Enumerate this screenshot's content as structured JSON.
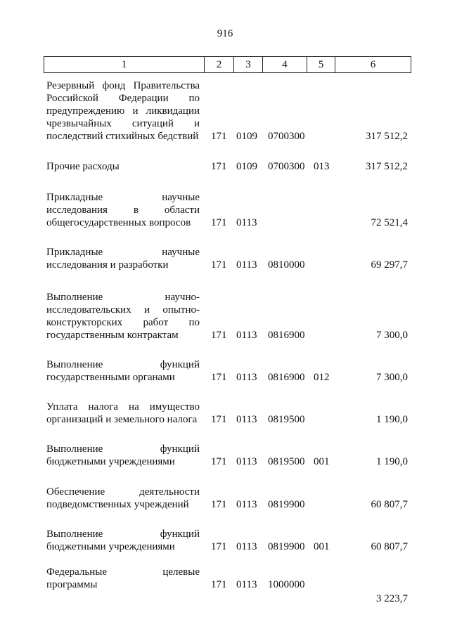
{
  "page_number": "916",
  "header": [
    "1",
    "2",
    "3",
    "4",
    "5",
    "6"
  ],
  "rows": [
    {
      "lines": [
        "Резервный фонд Правительства",
        "Российской Федерации по",
        "предупреждению и ликвидации",
        "чрезвычайных ситуаций и",
        "последствий стихийных бедствий"
      ],
      "c2": "171",
      "c3": "0109",
      "c4": "0700300",
      "c5": "",
      "c6": "317 512,2"
    },
    {
      "lines": [
        "Прочие расходы"
      ],
      "c2": "171",
      "c3": "0109",
      "c4": "0700300",
      "c5": "013",
      "c6": "317 512,2"
    },
    {
      "lines": [
        "Прикладные научные",
        "исследования в области",
        "общегосударственных вопросов"
      ],
      "c2": "171",
      "c3": "0113",
      "c4": "",
      "c5": "",
      "c6": "72 521,4"
    },
    {
      "lines": [
        "Прикладные научные",
        "исследования и разработки"
      ],
      "c2": "171",
      "c3": "0113",
      "c4": "0810000",
      "c5": "",
      "c6": "69 297,7"
    },
    {
      "lines": [
        "Выполнение научно-",
        "исследовательских и опытно-",
        "конструкторских работ по",
        "государственным контрактам"
      ],
      "c2": "171",
      "c3": "0113",
      "c4": "0816900",
      "c5": "",
      "c6": "7 300,0"
    },
    {
      "lines": [
        "Выполнение функций",
        "государственными органами"
      ],
      "c2": "171",
      "c3": "0113",
      "c4": "0816900",
      "c5": "012",
      "c6": "7 300,0"
    },
    {
      "lines": [
        "Уплата налога на имущество",
        "организаций и земельного налога"
      ],
      "c2": "171",
      "c3": "0113",
      "c4": "0819500",
      "c5": "",
      "c6": "1 190,0"
    },
    {
      "lines": [
        "Выполнение функций",
        "бюджетными учреждениями"
      ],
      "c2": "171",
      "c3": "0113",
      "c4": "0819500",
      "c5": "001",
      "c6": "1 190,0"
    },
    {
      "lines": [
        "Обеспечение деятельности",
        "подведомственных учреждений"
      ],
      "c2": "171",
      "c3": "0113",
      "c4": "0819900",
      "c5": "",
      "c6": "60 807,7"
    },
    {
      "lines": [
        "Выполнение функций",
        "бюджетными учреждениями"
      ],
      "c2": "171",
      "c3": "0113",
      "c4": "0819900",
      "c5": "001",
      "c6": "60 807,7"
    },
    {
      "lines": [
        "Федеральные целевые",
        "программы"
      ],
      "c2": "171",
      "c3": "0113",
      "c4": "1000000",
      "c5": "",
      "c6": "3 223,7"
    }
  ]
}
